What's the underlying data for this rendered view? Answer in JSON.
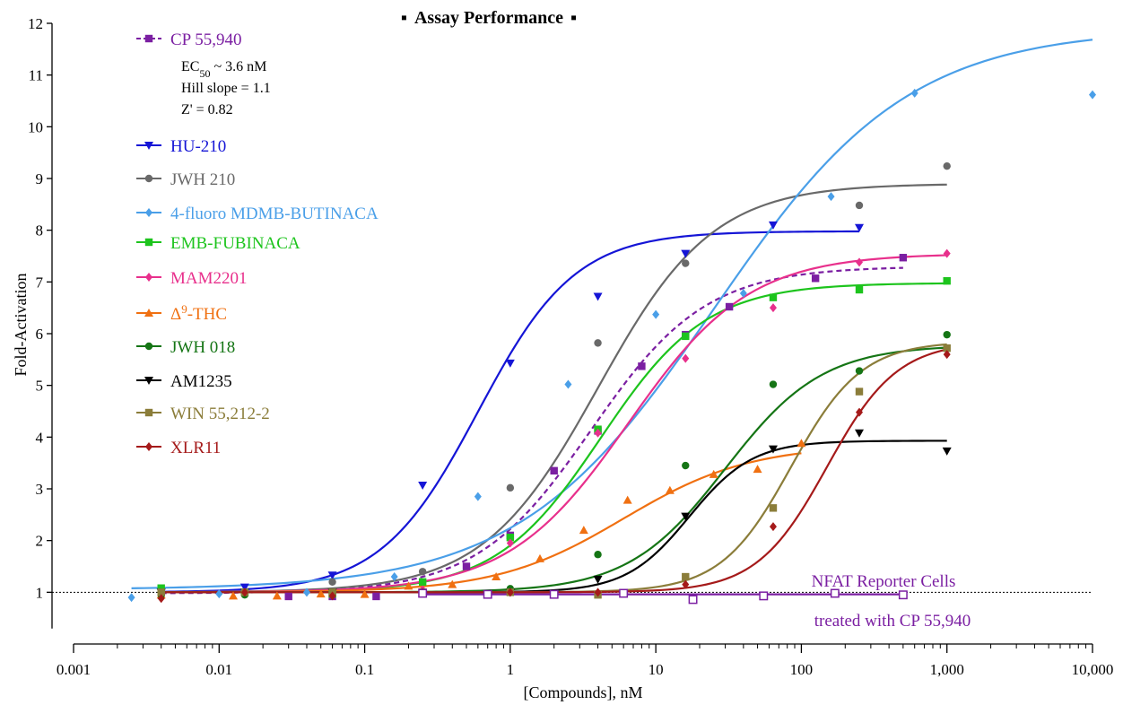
{
  "chart_data": {
    "type": "scatter",
    "title": "Assay Performance",
    "title_marker": "▪",
    "xlabel": "[Compounds], nM",
    "ylabel": "Fold-Activation",
    "x_scale": "log",
    "xlim": [
      0.001,
      10000
    ],
    "ylim": [
      0,
      12
    ],
    "x_ticks": [
      {
        "value": 0.001,
        "label": "0.001"
      },
      {
        "value": 0.01,
        "label": "0.01"
      },
      {
        "value": 0.1,
        "label": "0.1"
      },
      {
        "value": 1,
        "label": "1"
      },
      {
        "value": 10,
        "label": "10"
      },
      {
        "value": 100,
        "label": "100"
      },
      {
        "value": 1000,
        "label": "1,000"
      },
      {
        "value": 10000,
        "label": "10,000"
      }
    ],
    "y_ticks": [
      1,
      2,
      3,
      4,
      5,
      6,
      7,
      8,
      9,
      10,
      11,
      12
    ],
    "baseline": 1,
    "legend_position": "top-left",
    "cp_stats": {
      "ec50_prefix": "EC",
      "ec50_sub": "50",
      "ec50_suffix": " ~ 3.6 nM",
      "hill": "Hill slope = 1.1",
      "z": "Z' = 0.82"
    },
    "annotation": {
      "line1": "NFAT Reporter Cells",
      "line2": "treated with CP 55,940",
      "color": "#7B1FA2"
    },
    "series": [
      {
        "name": "CP 55,940",
        "color": "#7B1FA2",
        "marker": "square",
        "dashed": true,
        "curve": {
          "bottom": 0.98,
          "top": 7.3,
          "ec50": 3.6,
          "hill": 1.1,
          "xmin": 0.004,
          "xmax": 500
        },
        "points": [
          [
            0.004,
            1.0
          ],
          [
            0.015,
            1.0
          ],
          [
            0.03,
            0.92
          ],
          [
            0.06,
            0.92
          ],
          [
            0.12,
            0.92
          ],
          [
            0.25,
            1.0
          ],
          [
            0.5,
            1.5
          ],
          [
            1,
            2.1
          ],
          [
            2,
            3.35
          ],
          [
            4,
            4.12
          ],
          [
            8,
            5.37
          ],
          [
            16,
            5.98
          ],
          [
            32,
            6.52
          ],
          [
            125,
            7.07
          ],
          [
            500,
            7.47
          ]
        ]
      },
      {
        "name": "HU-210",
        "color": "#1515D6",
        "marker": "tri-down",
        "curve": {
          "bottom": 1.0,
          "top": 7.98,
          "ec50": 0.6,
          "hill": 1.3,
          "xmin": 0.004,
          "xmax": 250
        },
        "points": [
          [
            0.004,
            1.0
          ],
          [
            0.015,
            1.1
          ],
          [
            0.06,
            1.33
          ],
          [
            0.25,
            3.07
          ],
          [
            1,
            5.43
          ],
          [
            4,
            6.72
          ],
          [
            16,
            7.55
          ],
          [
            64,
            8.1
          ],
          [
            250,
            8.05
          ]
        ]
      },
      {
        "name": "JWH 210",
        "color": "#696969",
        "marker": "circle",
        "curve": {
          "bottom": 1.0,
          "top": 8.9,
          "ec50": 4.0,
          "hill": 1.1,
          "xmin": 0.004,
          "xmax": 1000
        },
        "points": [
          [
            0.004,
            1.0
          ],
          [
            0.015,
            1.0
          ],
          [
            0.06,
            1.2
          ],
          [
            0.25,
            1.4
          ],
          [
            1,
            3.02
          ],
          [
            4,
            5.82
          ],
          [
            16,
            7.36
          ],
          [
            250,
            8.48
          ],
          [
            1000,
            9.24
          ]
        ]
      },
      {
        "name": "4-fluoro MDMB-BUTINACA",
        "color": "#4A9FE8",
        "marker": "diamond",
        "curve": {
          "bottom": 1.05,
          "top": 11.9,
          "ec50": 25,
          "hill": 0.65,
          "xmin": 0.0025,
          "xmax": 10000
        },
        "points": [
          [
            0.0025,
            0.9
          ],
          [
            0.01,
            0.97
          ],
          [
            0.04,
            1.0
          ],
          [
            0.16,
            1.3
          ],
          [
            0.6,
            2.85
          ],
          [
            2.5,
            5.02
          ],
          [
            10,
            6.37
          ],
          [
            40,
            6.78
          ],
          [
            160,
            8.65
          ],
          [
            600,
            10.65
          ],
          [
            10000,
            10.62
          ]
        ]
      },
      {
        "name": "EMB-FUBINACA",
        "color": "#1DC41D",
        "marker": "square",
        "curve": {
          "bottom": 1.0,
          "top": 6.98,
          "ec50": 4.2,
          "hill": 1.2,
          "xmin": 0.004,
          "xmax": 1000
        },
        "points": [
          [
            0.004,
            1.08
          ],
          [
            0.015,
            1.0
          ],
          [
            0.06,
            0.97
          ],
          [
            0.25,
            1.2
          ],
          [
            1,
            2.06
          ],
          [
            4,
            4.15
          ],
          [
            16,
            5.95
          ],
          [
            64,
            6.7
          ],
          [
            250,
            6.85
          ],
          [
            1000,
            7.02
          ]
        ]
      },
      {
        "name": "MAM2201",
        "color": "#E8308C",
        "marker": "diamond",
        "curve": {
          "bottom": 1.0,
          "top": 7.55,
          "ec50": 6.5,
          "hill": 1.05,
          "xmin": 0.004,
          "xmax": 1000
        },
        "points": [
          [
            0.004,
            0.95
          ],
          [
            0.015,
            1.0
          ],
          [
            0.06,
            0.95
          ],
          [
            0.25,
            1.05
          ],
          [
            1,
            1.95
          ],
          [
            4,
            4.08
          ],
          [
            16,
            5.52
          ],
          [
            64,
            6.5
          ],
          [
            250,
            7.38
          ],
          [
            1000,
            7.55
          ]
        ]
      },
      {
        "name": "Δ9-THC",
        "label_base": "Δ",
        "label_sup": "9",
        "label_rest": "-THC",
        "color": "#F07011",
        "marker": "triangle",
        "curve": {
          "bottom": 1.0,
          "top": 3.85,
          "ec50": 6.0,
          "hill": 1.0,
          "xmin": 0.004,
          "xmax": 100
        },
        "points": [
          [
            0.004,
            0.95
          ],
          [
            0.0125,
            0.93
          ],
          [
            0.025,
            0.93
          ],
          [
            0.05,
            0.97
          ],
          [
            0.1,
            0.96
          ],
          [
            0.2,
            1.12
          ],
          [
            0.4,
            1.15
          ],
          [
            0.8,
            1.3
          ],
          [
            1.6,
            1.65
          ],
          [
            3.2,
            2.2
          ],
          [
            6.4,
            2.78
          ],
          [
            12.5,
            2.97
          ],
          [
            25,
            3.28
          ],
          [
            50,
            3.38
          ],
          [
            100,
            3.88
          ]
        ]
      },
      {
        "name": "JWH 018",
        "color": "#157515",
        "marker": "circle",
        "curve": {
          "bottom": 1.0,
          "top": 5.78,
          "ec50": 30,
          "hill": 1.3,
          "xmin": 0.004,
          "xmax": 1000
        },
        "points": [
          [
            0.004,
            0.95
          ],
          [
            0.015,
            0.95
          ],
          [
            0.06,
            1.0
          ],
          [
            0.25,
            1.0
          ],
          [
            1,
            1.07
          ],
          [
            4,
            1.73
          ],
          [
            16,
            3.45
          ],
          [
            64,
            5.02
          ],
          [
            250,
            5.28
          ],
          [
            1000,
            5.98
          ]
        ]
      },
      {
        "name": "AM1235",
        "color": "#000000",
        "marker": "tri-down",
        "curve": {
          "bottom": 1.0,
          "top": 3.93,
          "ec50": 17,
          "hill": 2.0,
          "xmin": 0.004,
          "xmax": 1000
        },
        "points": [
          [
            0.004,
            1.0
          ],
          [
            0.015,
            1.0
          ],
          [
            0.06,
            1.0
          ],
          [
            0.25,
            1.0
          ],
          [
            1,
            1.0
          ],
          [
            4,
            1.25
          ],
          [
            16,
            2.47
          ],
          [
            64,
            3.77
          ],
          [
            250,
            4.08
          ],
          [
            1000,
            3.73
          ]
        ]
      },
      {
        "name": "WIN 55,212-2",
        "color": "#8B7D3A",
        "marker": "square",
        "curve": {
          "bottom": 1.0,
          "top": 5.85,
          "ec50": 85,
          "hill": 1.8,
          "xmin": 0.004,
          "xmax": 1000
        },
        "points": [
          [
            0.004,
            1.0
          ],
          [
            0.015,
            1.0
          ],
          [
            0.06,
            1.0
          ],
          [
            0.25,
            1.0
          ],
          [
            1,
            1.0
          ],
          [
            4,
            0.95
          ],
          [
            16,
            1.3
          ],
          [
            64,
            2.63
          ],
          [
            250,
            4.88
          ],
          [
            1000,
            5.72
          ]
        ]
      },
      {
        "name": "XLR11",
        "color": "#A51A1A",
        "marker": "diamond",
        "curve": {
          "bottom": 1.0,
          "top": 5.85,
          "ec50": 150,
          "hill": 1.8,
          "xmin": 0.004,
          "xmax": 1000
        },
        "points": [
          [
            0.004,
            0.88
          ],
          [
            0.015,
            1.0
          ],
          [
            0.06,
            0.93
          ],
          [
            0.25,
            1.0
          ],
          [
            1,
            1.0
          ],
          [
            4,
            1.0
          ],
          [
            16,
            1.15
          ],
          [
            64,
            2.27
          ],
          [
            250,
            4.48
          ],
          [
            1000,
            5.6
          ]
        ]
      },
      {
        "name": "NFAT Reporter Cells treated with CP 55,940",
        "color": "#7B1FA2",
        "marker": "square-open",
        "in_legend": false,
        "curve": {
          "bottom": 0.96,
          "top": 0.96,
          "ec50": 1,
          "hill": 1,
          "xmin": 0.25,
          "xmax": 500
        },
        "points": [
          [
            0.25,
            0.98
          ],
          [
            0.7,
            0.96
          ],
          [
            2,
            0.96
          ],
          [
            6,
            0.98
          ],
          [
            18,
            0.86
          ],
          [
            55,
            0.93
          ],
          [
            170,
            0.98
          ],
          [
            500,
            0.95
          ]
        ]
      }
    ]
  }
}
